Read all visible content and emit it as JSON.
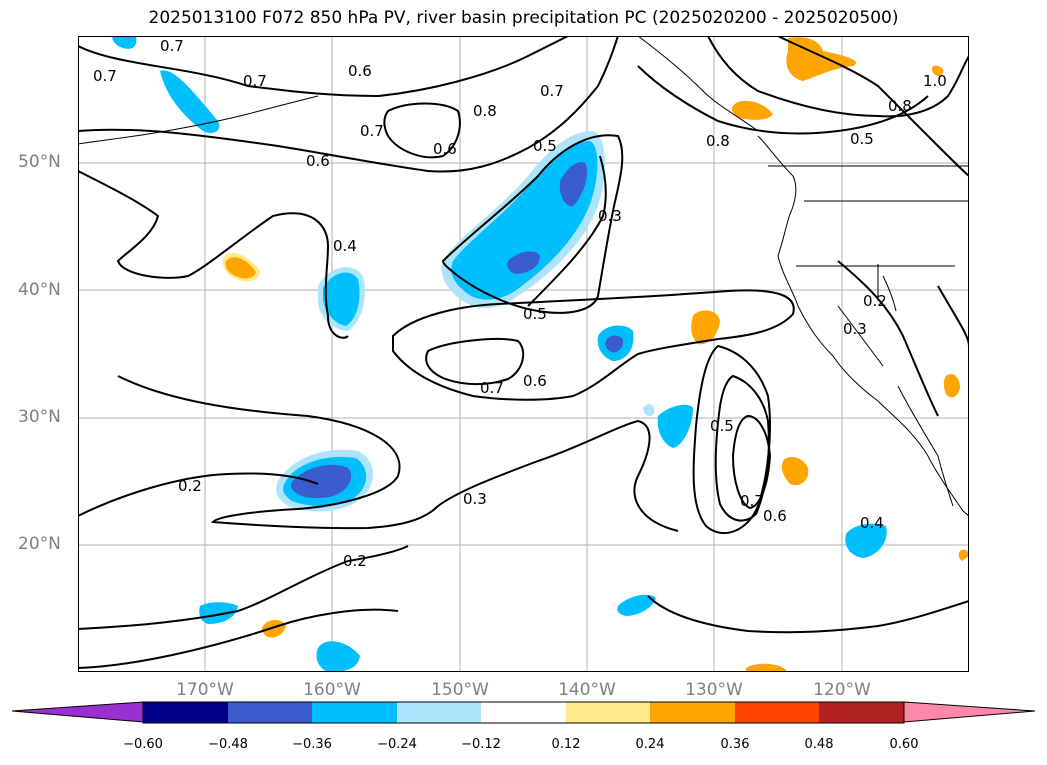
{
  "title": "2025013100 F072 850 hPa PV, river basin precipitation PC (2025020200 - 2025020500)",
  "lat_labels": [
    "50°N",
    "40°N",
    "30°N",
    "20°N"
  ],
  "lon_labels": [
    "170°W",
    "160°W",
    "150°W",
    "140°W",
    "130°W",
    "120°W"
  ],
  "contour_labels": [
    "0.7",
    "0.7",
    "0.7",
    "0.6",
    "0.8",
    "0.7",
    "0.6",
    "0.7",
    "0.6",
    "0.5",
    "0.8",
    "0.5",
    "1.0",
    "0.8",
    "0.3",
    "0.4",
    "0.5",
    "0.7",
    "0.6",
    "0.5",
    "0.2",
    "0.3",
    "0.7",
    "0.6",
    "0.2",
    "0.3",
    "0.2",
    "0.4"
  ],
  "colorbar": {
    "ticks": [
      "−0.60",
      "−0.48",
      "−0.36",
      "−0.24",
      "−0.12",
      "0.12",
      "0.24",
      "0.36",
      "0.48",
      "0.60"
    ],
    "colors": [
      "#9b30d0",
      "#00008b",
      "#3a5ccc",
      "#00bfff",
      "#aee4fa",
      "#ffffff",
      "#ffe98a",
      "#ffa500",
      "#ff4500",
      "#b22222",
      "#ff88aa"
    ]
  }
}
